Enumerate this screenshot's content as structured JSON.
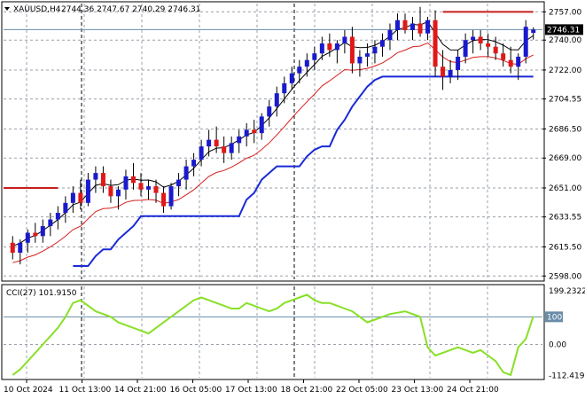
{
  "header": {
    "symbol_label": "XAUUSD,H4",
    "ohlc_label": "2744.36 2747.67 2740.29 2746.31"
  },
  "indicator": {
    "label": "CCI(27) 101.9150"
  },
  "colors": {
    "bull_candle": "#1a1acd",
    "bear_candle": "#e01818",
    "band_upper": "#000000",
    "band_lower": "#d81e1e",
    "stop_low": "#1a2ad8",
    "stop_high": "#c81e1e",
    "cci_line": "#88e026",
    "grid": "#9aa0aa"
  },
  "chart_data": [
    {
      "type": "candlestick",
      "y_axis_ticks": [
        "2757.00",
        "2740.00",
        "2722.00",
        "2704.55",
        "2686.50",
        "2669.00",
        "2651.00",
        "2633.55",
        "2615.50",
        "2598.00"
      ],
      "current_price_label": "2746.31",
      "current_price": 2746.31,
      "x_axis_labels": [
        "10 Oct 2024",
        "11 Oct 13:00",
        "14 Oct 21:00",
        "16 Oct 05:00",
        "17 Oct 13:00",
        "18 Oct 21:00",
        "22 Oct 05:00",
        "23 Oct 13:00",
        "24 Oct 21:00"
      ],
      "ylim": [
        2596,
        2762
      ],
      "candles": [
        [
          2618,
          2622,
          2608,
          2612
        ],
        [
          2612,
          2620,
          2605,
          2618
        ],
        [
          2618,
          2626,
          2612,
          2624
        ],
        [
          2624,
          2630,
          2618,
          2622
        ],
        [
          2622,
          2632,
          2618,
          2628
        ],
        [
          2628,
          2636,
          2622,
          2632
        ],
        [
          2632,
          2640,
          2626,
          2636
        ],
        [
          2636,
          2646,
          2630,
          2642
        ],
        [
          2642,
          2652,
          2636,
          2648
        ],
        [
          2648,
          2656,
          2638,
          2642
        ],
        [
          2642,
          2660,
          2640,
          2656
        ],
        [
          2656,
          2664,
          2648,
          2660
        ],
        [
          2660,
          2664,
          2648,
          2652
        ],
        [
          2652,
          2656,
          2642,
          2646
        ],
        [
          2646,
          2652,
          2638,
          2650
        ],
        [
          2650,
          2662,
          2644,
          2658
        ],
        [
          2658,
          2666,
          2650,
          2654
        ],
        [
          2654,
          2660,
          2646,
          2650
        ],
        [
          2650,
          2656,
          2644,
          2652
        ],
        [
          2652,
          2656,
          2642,
          2648
        ],
        [
          2648,
          2652,
          2636,
          2640
        ],
        [
          2640,
          2654,
          2638,
          2652
        ],
        [
          2652,
          2660,
          2646,
          2656
        ],
        [
          2656,
          2668,
          2650,
          2664
        ],
        [
          2664,
          2672,
          2658,
          2668
        ],
        [
          2668,
          2680,
          2664,
          2676
        ],
        [
          2676,
          2686,
          2670,
          2680
        ],
        [
          2680,
          2688,
          2672,
          2676
        ],
        [
          2676,
          2682,
          2666,
          2672
        ],
        [
          2672,
          2682,
          2668,
          2678
        ],
        [
          2678,
          2686,
          2672,
          2682
        ],
        [
          2682,
          2690,
          2676,
          2686
        ],
        [
          2686,
          2692,
          2678,
          2684
        ],
        [
          2684,
          2696,
          2680,
          2694
        ],
        [
          2694,
          2704,
          2688,
          2700
        ],
        [
          2700,
          2712,
          2694,
          2708
        ],
        [
          2708,
          2718,
          2702,
          2714
        ],
        [
          2714,
          2724,
          2710,
          2720
        ],
        [
          2720,
          2728,
          2714,
          2724
        ],
        [
          2724,
          2732,
          2718,
          2728
        ],
        [
          2728,
          2736,
          2722,
          2732
        ],
        [
          2732,
          2742,
          2728,
          2738
        ],
        [
          2738,
          2744,
          2730,
          2734
        ],
        [
          2734,
          2740,
          2726,
          2738
        ],
        [
          2738,
          2746,
          2732,
          2742
        ],
        [
          2742,
          2748,
          2720,
          2726
        ],
        [
          2726,
          2734,
          2718,
          2730
        ],
        [
          2730,
          2738,
          2724,
          2732
        ],
        [
          2732,
          2740,
          2726,
          2736
        ],
        [
          2736,
          2744,
          2730,
          2740
        ],
        [
          2740,
          2750,
          2734,
          2746
        ],
        [
          2746,
          2756,
          2740,
          2752
        ],
        [
          2752,
          2756,
          2744,
          2746
        ],
        [
          2746,
          2754,
          2740,
          2750
        ],
        [
          2750,
          2760,
          2742,
          2744
        ],
        [
          2744,
          2754,
          2740,
          2752
        ],
        [
          2752,
          2758,
          2718,
          2724
        ],
        [
          2724,
          2734,
          2710,
          2718
        ],
        [
          2718,
          2728,
          2714,
          2722
        ],
        [
          2722,
          2734,
          2716,
          2730
        ],
        [
          2730,
          2744,
          2726,
          2740
        ],
        [
          2740,
          2746,
          2732,
          2742
        ],
        [
          2742,
          2746,
          2734,
          2738
        ],
        [
          2738,
          2744,
          2730,
          2736
        ],
        [
          2736,
          2742,
          2728,
          2732
        ],
        [
          2732,
          2738,
          2724,
          2728
        ],
        [
          2728,
          2736,
          2720,
          2724
        ],
        [
          2724,
          2732,
          2716,
          2730
        ],
        [
          2730,
          2752,
          2726,
          2748
        ],
        [
          2744.36,
          2747.67,
          2740.29,
          2746.31
        ]
      ]
    },
    {
      "type": "line",
      "title": "CCI(27) 101.9150",
      "y_axis_ticks": [
        "199.2322",
        "100",
        "0.00",
        "-112.4195"
      ],
      "ylim": [
        -120,
        210
      ],
      "values": [
        -110,
        -90,
        -60,
        -30,
        0,
        30,
        60,
        100,
        150,
        160,
        140,
        120,
        110,
        100,
        80,
        70,
        60,
        50,
        40,
        60,
        80,
        100,
        120,
        140,
        160,
        170,
        160,
        150,
        140,
        130,
        130,
        150,
        140,
        130,
        120,
        130,
        150,
        160,
        170,
        180,
        160,
        150,
        150,
        140,
        130,
        120,
        100,
        80,
        90,
        100,
        110,
        115,
        120,
        110,
        100,
        -10,
        -40,
        -30,
        -20,
        -10,
        -20,
        -30,
        -20,
        -40,
        -60,
        -100,
        -110,
        -10,
        20,
        101.915
      ]
    }
  ]
}
